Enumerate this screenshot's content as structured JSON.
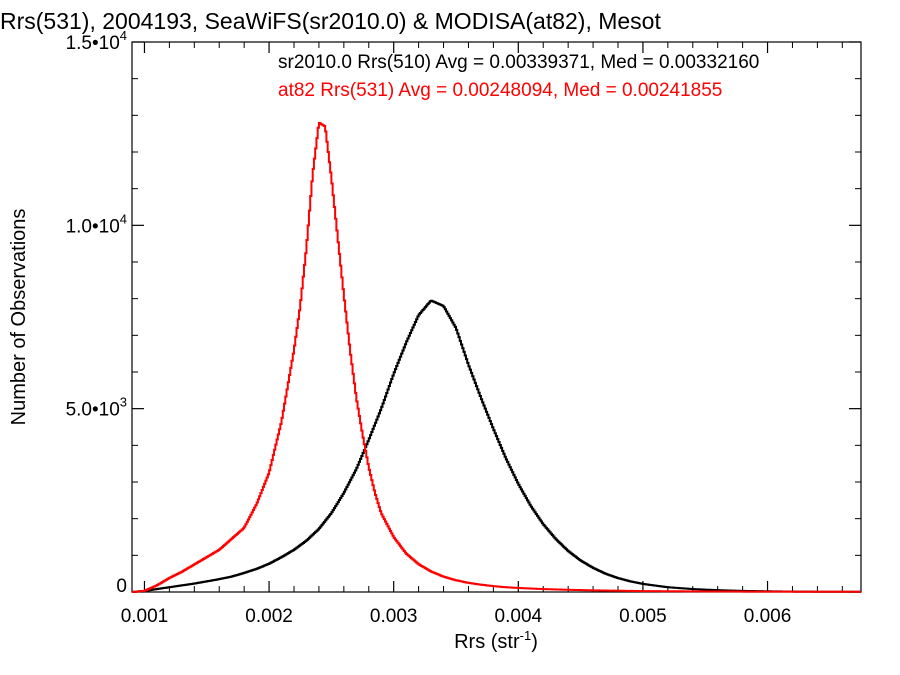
{
  "chart_data": {
    "type": "line",
    "title": "Rrs(531), 2004193, SeaWiFS(sr2010.0) & MODISA(at82), Mesot",
    "xlabel": "Rrs (str",
    "xlabel_sup": "-1",
    "xlabel_end": ")",
    "ylabel": "Number of Observations",
    "xlim": [
      0.0009,
      0.00675
    ],
    "ylim": [
      0,
      15000
    ],
    "x_ticks": [
      {
        "value": 0.001,
        "label": "0.001"
      },
      {
        "value": 0.002,
        "label": "0.002"
      },
      {
        "value": 0.003,
        "label": "0.003"
      },
      {
        "value": 0.004,
        "label": "0.004"
      },
      {
        "value": 0.005,
        "label": "0.005"
      },
      {
        "value": 0.006,
        "label": "0.006"
      }
    ],
    "y_ticks": [
      {
        "value": 0,
        "mant": "0",
        "exp": ""
      },
      {
        "value": 5000,
        "mant": "5.0•10",
        "exp": "3"
      },
      {
        "value": 10000,
        "mant": "1.0•10",
        "exp": "4"
      },
      {
        "value": 15000,
        "mant": "1.5•10",
        "exp": "4"
      }
    ],
    "legend": [
      {
        "text": "sr2010.0 Rrs(510) Avg = 0.00339371, Med = 0.00332160",
        "color": "#000000"
      },
      {
        "text": "at82 Rrs(531) Avg = 0.00248094, Med = 0.00241855",
        "color": "#ff0000"
      }
    ],
    "series": [
      {
        "color": "#000000",
        "x": [
          0.0009,
          0.001,
          0.0011,
          0.0012,
          0.0013,
          0.0014,
          0.0015,
          0.0016,
          0.0017,
          0.0018,
          0.0019,
          0.002,
          0.0021,
          0.0022,
          0.0023,
          0.0024,
          0.0025,
          0.0026,
          0.0027,
          0.0028,
          0.0029,
          0.003,
          0.0031,
          0.0032,
          0.0033,
          0.0034,
          0.0035,
          0.0036,
          0.0037,
          0.0038,
          0.0039,
          0.004,
          0.0041,
          0.0042,
          0.0043,
          0.0044,
          0.0045,
          0.0046,
          0.0047,
          0.0048,
          0.0049,
          0.005,
          0.0052,
          0.0054,
          0.0056,
          0.0058,
          0.006,
          0.0062,
          0.0064,
          0.00675
        ],
        "y": [
          0,
          30,
          80,
          130,
          180,
          230,
          290,
          350,
          420,
          520,
          630,
          770,
          950,
          1150,
          1400,
          1720,
          2150,
          2700,
          3350,
          4150,
          5000,
          5950,
          6800,
          7550,
          7950,
          7800,
          7200,
          6200,
          5300,
          4450,
          3650,
          2950,
          2350,
          1850,
          1450,
          1120,
          860,
          660,
          500,
          380,
          290,
          220,
          130,
          80,
          50,
          30,
          20,
          12,
          8,
          5
        ]
      },
      {
        "color": "#ff0000",
        "x": [
          0.0009,
          0.001,
          0.0011,
          0.0012,
          0.0013,
          0.0014,
          0.0015,
          0.0016,
          0.0017,
          0.0018,
          0.0019,
          0.002,
          0.0021,
          0.0022,
          0.00225,
          0.0023,
          0.00235,
          0.0024,
          0.00245,
          0.0025,
          0.00255,
          0.0026,
          0.00265,
          0.0027,
          0.00275,
          0.0028,
          0.00285,
          0.0029,
          0.003,
          0.0031,
          0.0032,
          0.0033,
          0.0034,
          0.0035,
          0.0036,
          0.0037,
          0.0038,
          0.0039,
          0.004,
          0.0042,
          0.0044,
          0.0046,
          0.0048,
          0.005,
          0.0055,
          0.006,
          0.00675
        ],
        "y": [
          0,
          30,
          180,
          380,
          550,
          750,
          950,
          1150,
          1450,
          1750,
          2400,
          3250,
          4650,
          6600,
          7800,
          9400,
          11400,
          12800,
          12700,
          11300,
          9700,
          8100,
          6600,
          5300,
          4300,
          3400,
          2700,
          2150,
          1500,
          1050,
          760,
          560,
          420,
          320,
          250,
          200,
          160,
          130,
          110,
          80,
          60,
          45,
          35,
          25,
          15,
          10,
          5
        ]
      }
    ]
  }
}
